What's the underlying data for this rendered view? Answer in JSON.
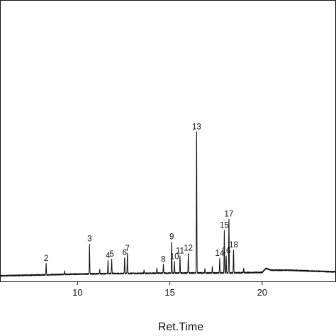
{
  "chart_data": {
    "type": "line",
    "title": "",
    "xlabel": "Ret.Time",
    "ylabel": "",
    "xlim": [
      5.8,
      24.0
    ],
    "ylim": [
      0,
      100
    ],
    "grid": false,
    "x_ticks": [
      10,
      15,
      20
    ],
    "x_tick_labels": [
      "10",
      "15",
      "20"
    ],
    "line_color": "#111111",
    "peaks": [
      {
        "label": "2",
        "x": 8.3,
        "height": 4
      },
      {
        "label": "3",
        "x": 10.65,
        "height": 10.5
      },
      {
        "label": "4",
        "x": 11.65,
        "height": 4.5
      },
      {
        "label": "5",
        "x": 11.85,
        "height": 5
      },
      {
        "label": "6",
        "x": 12.55,
        "height": 5.5
      },
      {
        "label": "7",
        "x": 12.7,
        "height": 7
      },
      {
        "label": "8",
        "x": 14.65,
        "height": 3
      },
      {
        "label": "9",
        "x": 15.1,
        "height": 11
      },
      {
        "label": "10",
        "x": 15.25,
        "height": 4
      },
      {
        "label": "11",
        "x": 15.55,
        "height": 6
      },
      {
        "label": "12",
        "x": 16.0,
        "height": 7
      },
      {
        "label": "13",
        "x": 16.45,
        "height": 50
      },
      {
        "label": "14",
        "x": 17.7,
        "height": 5
      },
      {
        "label": "15",
        "x": 17.95,
        "height": 15
      },
      {
        "label": "16",
        "x": 18.05,
        "height": 6
      },
      {
        "label": "17",
        "x": 18.2,
        "height": 19
      },
      {
        "label": "18",
        "x": 18.45,
        "height": 8
      }
    ],
    "minor_peaks": [
      {
        "x": 9.3,
        "height": 1.2
      },
      {
        "x": 11.2,
        "height": 1.5
      },
      {
        "x": 13.6,
        "height": 1.2
      },
      {
        "x": 14.3,
        "height": 1.8
      },
      {
        "x": 16.9,
        "height": 1.5
      },
      {
        "x": 17.3,
        "height": 2.2
      },
      {
        "x": 19.0,
        "height": 1.5
      }
    ],
    "baseline": [
      {
        "x": 5.8,
        "y": 2.0
      },
      {
        "x": 8.0,
        "y": 2.3
      },
      {
        "x": 10.0,
        "y": 2.6
      },
      {
        "x": 12.0,
        "y": 2.8
      },
      {
        "x": 14.0,
        "y": 2.9
      },
      {
        "x": 16.0,
        "y": 3.0
      },
      {
        "x": 18.0,
        "y": 3.0
      },
      {
        "x": 20.0,
        "y": 3.2
      },
      {
        "x": 20.2,
        "y": 4.6
      },
      {
        "x": 20.5,
        "y": 4.0
      },
      {
        "x": 21.5,
        "y": 4.0
      },
      {
        "x": 23.0,
        "y": 3.6
      },
      {
        "x": 24.0,
        "y": 3.4
      }
    ]
  }
}
